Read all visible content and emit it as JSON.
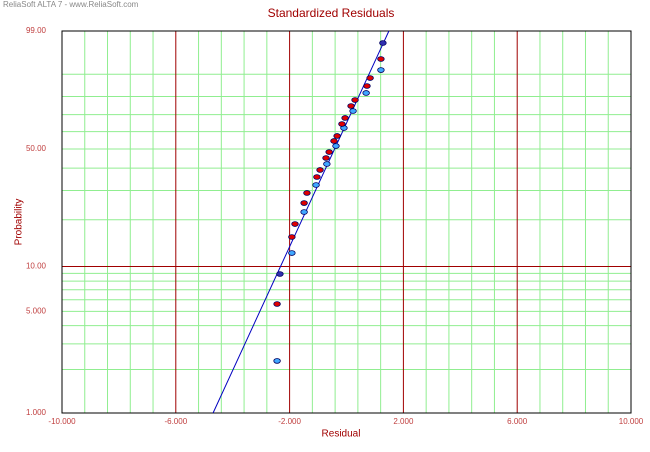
{
  "chart_data": {
    "type": "scatter",
    "watermark": "ReliaSoft ALTA 7 - www.ReliaSoft.com",
    "title": "Standardized Residuals",
    "xlabel": "Residual",
    "ylabel": "Probability",
    "yscale": "weibull",
    "xlim": [
      -10,
      10
    ],
    "ylim": [
      1,
      99
    ],
    "xticks": [
      {
        "value": -10,
        "label": "-10.000"
      },
      {
        "value": -6,
        "label": "-6.000"
      },
      {
        "value": -2,
        "label": "-2.000"
      },
      {
        "value": 2,
        "label": "2.000"
      },
      {
        "value": 6,
        "label": "6.000"
      },
      {
        "value": 10,
        "label": "10.000"
      }
    ],
    "yticks": [
      {
        "value": 1,
        "label": "1.000"
      },
      {
        "value": 5,
        "label": "5.000"
      },
      {
        "value": 10,
        "label": "10.00"
      },
      {
        "value": 50,
        "label": "50.00"
      },
      {
        "value": 99,
        "label": "99.00"
      }
    ],
    "xminor": [
      -9.2,
      -8.4,
      -7.6,
      -6.8,
      -5.2,
      -4.4,
      -3.6,
      -2.8,
      -1.2,
      -0.4,
      0.4,
      1.2,
      2.8,
      3.6,
      4.4,
      5.2,
      6.8,
      7.6,
      8.4,
      9.2
    ],
    "yminor": [
      2,
      3,
      4,
      6,
      7,
      8,
      9,
      20,
      30,
      40,
      60,
      70,
      80,
      90
    ],
    "xmajor": [
      -6,
      -2,
      2,
      6
    ],
    "ymajor": [
      10
    ],
    "grid_color": "#90ee90",
    "major_color": "#a00000",
    "fit": {
      "color": "#0000c0",
      "x": [
        -4.69,
        1.49
      ],
      "values": [
        1,
        99
      ]
    },
    "series": [
      {
        "color": "#40a8ff",
        "x": [
          -2.44,
          -1.92,
          -1.49,
          -1.07,
          -0.69,
          -0.37,
          -0.09,
          0.23,
          0.69,
          1.21
        ],
        "values": [
          2.29,
          12.26,
          22.32,
          32.26,
          42.05,
          51.69,
          62.14,
          72.09,
          81.81,
          91.47
        ]
      },
      {
        "color": "#e00000",
        "x": [
          -2.44,
          -1.92,
          -1.81,
          -1.49,
          -1.39,
          -1.04,
          -0.93,
          -0.72,
          -0.61,
          -0.44,
          -0.33,
          -0.16,
          -0.05,
          0.16,
          0.3,
          0.72,
          0.83,
          1.21
        ],
        "values": [
          5.61,
          15.56,
          18.8,
          25.29,
          29.02,
          35.77,
          39.08,
          45.15,
          48.37,
          54.57,
          57.47,
          64.51,
          68.05,
          74.92,
          78.17,
          85.13,
          88.54,
          94.71
        ]
      },
      {
        "color": "#3030b0",
        "x": [
          -2.34,
          1.28
        ],
        "values": [
          8.92,
          97.76
        ]
      }
    ]
  }
}
